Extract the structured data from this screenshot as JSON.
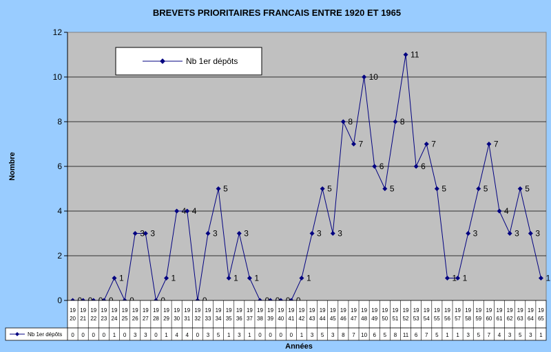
{
  "chart_data": {
    "type": "line",
    "title": "BREVETS PRIORITAIRES FRANCAIS ENTRE 1920 ET 1965",
    "xlabel": "Années",
    "ylabel": "Nombre",
    "ylim": [
      0,
      12
    ],
    "yticks": [
      "0",
      "2",
      "4",
      "6",
      "8",
      "10",
      "12"
    ],
    "grid": true,
    "legend_position": "top-left",
    "categories": [
      "1920",
      "1921",
      "1922",
      "1923",
      "1924",
      "1925",
      "1926",
      "1927",
      "1928",
      "1929",
      "1930",
      "1931",
      "1932",
      "1933",
      "1934",
      "1935",
      "1936",
      "1937",
      "1938",
      "1939",
      "1940",
      "1941",
      "1942",
      "1943",
      "1944",
      "1945",
      "1946",
      "1947",
      "1948",
      "1949",
      "1950",
      "1951",
      "1952",
      "1953",
      "1954",
      "1955",
      "1956",
      "1957",
      "1958",
      "1959",
      "1960",
      "1961",
      "1962",
      "1963",
      "1964",
      "1965"
    ],
    "category_lines": [
      [
        "19",
        "20"
      ],
      [
        "19",
        "21"
      ],
      [
        "19",
        "22"
      ],
      [
        "19",
        "23"
      ],
      [
        "19",
        "24"
      ],
      [
        "19",
        "25"
      ],
      [
        "19",
        "26"
      ],
      [
        "19",
        "27"
      ],
      [
        "19",
        "28"
      ],
      [
        "19",
        "29"
      ],
      [
        "19",
        "30"
      ],
      [
        "19",
        "31"
      ],
      [
        "19",
        "32"
      ],
      [
        "19",
        "33"
      ],
      [
        "19",
        "34"
      ],
      [
        "19",
        "35"
      ],
      [
        "19",
        "36"
      ],
      [
        "19",
        "37"
      ],
      [
        "19",
        "38"
      ],
      [
        "19",
        "39"
      ],
      [
        "19",
        "40"
      ],
      [
        "19",
        "41"
      ],
      [
        "19",
        "42"
      ],
      [
        "19",
        "43"
      ],
      [
        "19",
        "44"
      ],
      [
        "19",
        "45"
      ],
      [
        "19",
        "46"
      ],
      [
        "19",
        "47"
      ],
      [
        "19",
        "48"
      ],
      [
        "19",
        "49"
      ],
      [
        "19",
        "50"
      ],
      [
        "19",
        "51"
      ],
      [
        "19",
        "52"
      ],
      [
        "19",
        "53"
      ],
      [
        "19",
        "54"
      ],
      [
        "19",
        "55"
      ],
      [
        "19",
        "56"
      ],
      [
        "19",
        "57"
      ],
      [
        "19",
        "58"
      ],
      [
        "19",
        "59"
      ],
      [
        "19",
        "60"
      ],
      [
        "19",
        "61"
      ],
      [
        "19",
        "62"
      ],
      [
        "19",
        "63"
      ],
      [
        "19",
        "64"
      ],
      [
        "19",
        "65"
      ]
    ],
    "series": [
      {
        "name": "Nb 1er dépôts",
        "color": "#000080",
        "values": [
          0,
          0,
          0,
          0,
          1,
          0,
          3,
          3,
          0,
          1,
          4,
          4,
          0,
          3,
          5,
          1,
          3,
          1,
          0,
          0,
          0,
          0,
          1,
          3,
          5,
          3,
          8,
          7,
          10,
          6,
          5,
          8,
          11,
          6,
          7,
          5,
          1,
          1,
          3,
          5,
          7,
          4,
          3,
          5,
          3,
          1
        ]
      }
    ],
    "colors": {
      "background": "#99ccff",
      "plot_area": "#c0c0c0",
      "legend_bg": "#ffffff",
      "line": "#000080"
    }
  }
}
